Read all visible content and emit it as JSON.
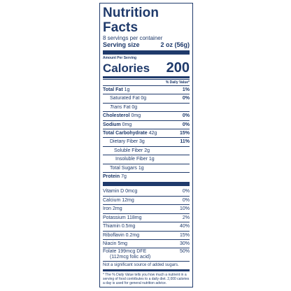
{
  "label": {
    "title": "Nutrition Facts",
    "servings": "8 servings per container",
    "serving_size_label": "Serving size",
    "serving_size_value": "2 oz (56g)",
    "amount_per_serving": "Amount Per Serving",
    "calories_label": "Calories",
    "calories_value": "200",
    "daily_value_header": "% Daily Value*",
    "nutrients": [
      {
        "name": "Total Fat",
        "amount": "1g",
        "dv": "1%"
      },
      {
        "name": "Saturated Fat",
        "amount": "0g",
        "dv": "0%"
      },
      {
        "name": "Trans",
        "suffix": "Fat 0g"
      },
      {
        "name": "Cholesterol",
        "amount": "0mg",
        "dv": "0%"
      },
      {
        "name": "Sodium",
        "amount": "0mg",
        "dv": "0%"
      },
      {
        "name": "Total Carbohydrate",
        "amount": "42g",
        "dv": "15%"
      },
      {
        "name": "Dietary Fiber",
        "amount": "3g",
        "dv": "11%"
      },
      {
        "name": "Soluble Fiber",
        "amount": "2g"
      },
      {
        "name": "Insoluble Fiber",
        "amount": "1g"
      },
      {
        "name": "Total Sugars",
        "amount": "1g"
      },
      {
        "name": "Protein",
        "amount": "7g"
      }
    ],
    "vitamins": [
      {
        "text": "Vitamin D 0mcg",
        "dv": "0%"
      },
      {
        "text": "Calcium 12mg",
        "dv": "0%"
      },
      {
        "text": "Iron 2mg",
        "dv": "10%"
      },
      {
        "text": "Potassium 118mg",
        "dv": "2%"
      },
      {
        "text": "Thiamin 0.5mg",
        "dv": "40%"
      },
      {
        "text": "Riboflavin 0.2mg",
        "dv": "15%"
      },
      {
        "text": "Niacin 5mg",
        "dv": "30%"
      },
      {
        "text": "Folate 199mcg DFE",
        "text2": "(112mcg folic acid)",
        "dv": "50%"
      }
    ],
    "added_sugars_note": "Not a significant source of added sugars.",
    "footnote": "* The % Daily Value tells you how much a nutrient in a serving of food contributes to a daily diet. 2,000 calories a day is used for general nutrition advice."
  },
  "colors": {
    "ink": "#1f3a6b",
    "background": "#ffffff"
  }
}
